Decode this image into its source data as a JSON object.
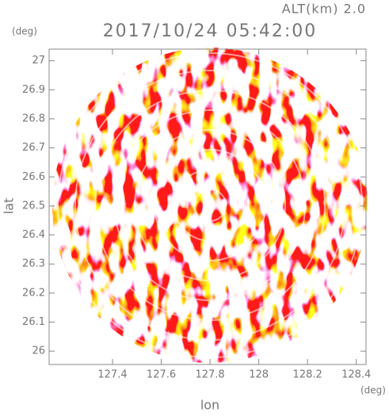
{
  "chart_data": {
    "type": "ppi",
    "title": "2017/10/24 05:42:00",
    "subtitle": "ALT(km) 2.0",
    "x_label": "lon",
    "y_label": "lat",
    "x_unit": "(deg)",
    "y_unit": "(deg)",
    "xlim": [
      127.14,
      128.44
    ],
    "ylim": [
      25.954,
      27.04
    ],
    "xticks": [
      127.4,
      127.6,
      127.8,
      128.0,
      128.2,
      128.4
    ],
    "yticks": [
      26.0,
      26.1,
      26.2,
      26.3,
      26.4,
      26.5,
      26.6,
      26.7,
      26.8,
      26.9,
      27.0
    ]
  }
}
